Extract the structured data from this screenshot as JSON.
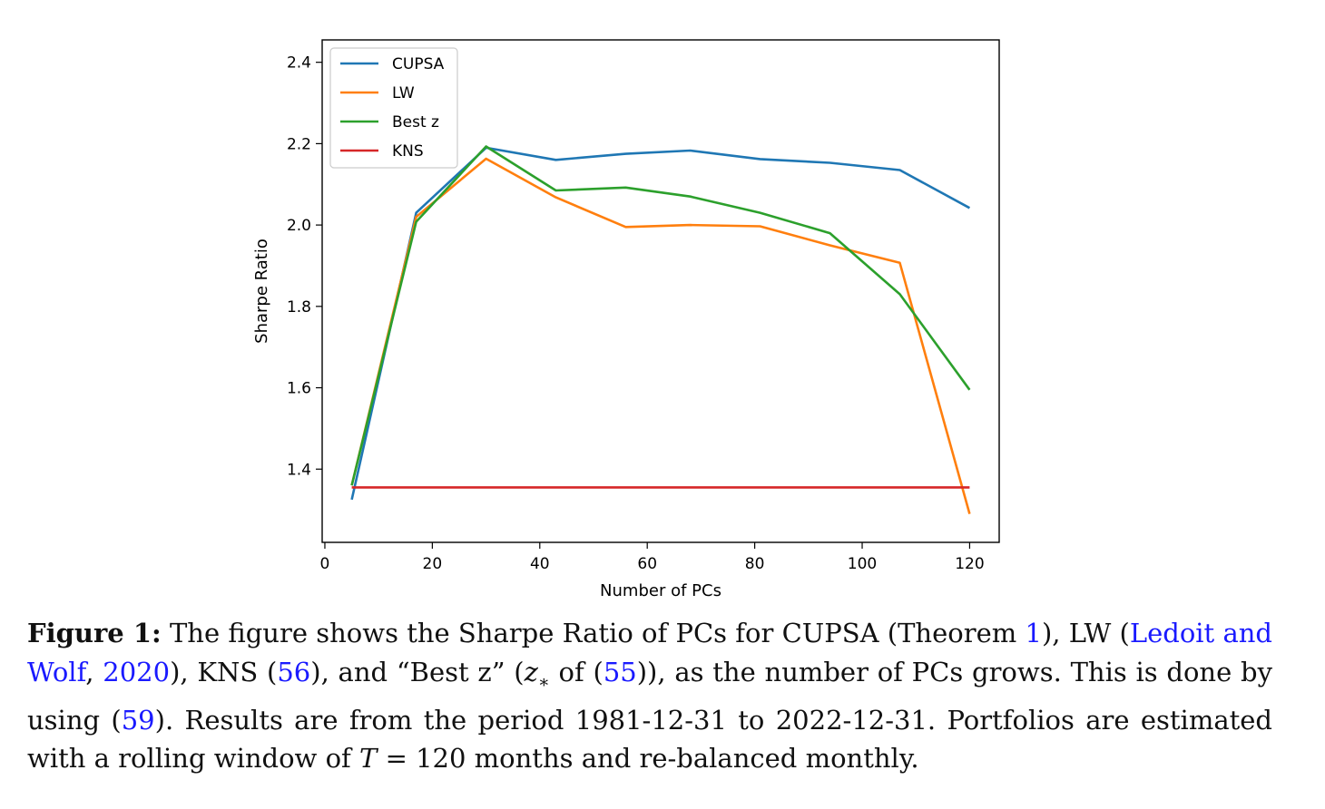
{
  "chart_data": {
    "type": "line",
    "xlabel": "Number of PCs",
    "ylabel": "Sharpe Ratio",
    "xlim": [
      -0.5,
      125.5
    ],
    "ylim": [
      1.22,
      2.455
    ],
    "xticks": [
      0,
      20,
      40,
      60,
      80,
      100,
      120
    ],
    "yticks": [
      1.4,
      1.6,
      1.8,
      2.0,
      2.2,
      2.4
    ],
    "xtick_labels": [
      "0",
      "20",
      "40",
      "60",
      "80",
      "100",
      "120"
    ],
    "ytick_labels": [
      "1.4",
      "1.6",
      "1.8",
      "2.0",
      "2.2",
      "2.4"
    ],
    "grid": false,
    "legend_position": "top-left",
    "series": [
      {
        "name": "CUPSA",
        "color": "#1f77b4",
        "x": [
          5,
          17,
          30,
          43,
          56,
          68,
          81,
          94,
          107,
          120
        ],
        "y": [
          1.325,
          2.03,
          2.19,
          2.16,
          2.175,
          2.183,
          2.162,
          2.153,
          2.135,
          2.042
        ]
      },
      {
        "name": "LW",
        "color": "#ff7f0e",
        "x": [
          5,
          17,
          30,
          43,
          56,
          68,
          81,
          94,
          107,
          120
        ],
        "y": [
          1.36,
          2.02,
          2.163,
          2.068,
          1.995,
          2.0,
          1.997,
          1.95,
          1.907,
          1.29
        ]
      },
      {
        "name": "Best z",
        "color": "#2ca02c",
        "x": [
          5,
          17,
          30,
          43,
          56,
          68,
          81,
          94,
          107,
          120
        ],
        "y": [
          1.36,
          2.008,
          2.193,
          2.085,
          2.092,
          2.07,
          2.03,
          1.98,
          1.83,
          1.595
        ]
      },
      {
        "name": "KNS",
        "color": "#d62728",
        "x": [
          5,
          120
        ],
        "y": [
          1.355,
          1.355
        ]
      }
    ]
  },
  "caption": {
    "label": "Figure 1:",
    "t1": " The figure shows the Sharpe Ratio of PCs for CUPSA (Theorem ",
    "ref_theorem": "1",
    "t2": "), LW (",
    "ref_lw": "Ledoit and Wolf",
    "t3": ", ",
    "ref_year": "2020",
    "t4": "), KNS (",
    "ref_56": "56",
    "t5": "), and “Best z” (",
    "math_z": "z",
    "math_sub": "∗",
    "t6": " of (",
    "ref_55": "55",
    "t7": ")), as the number of PCs grows. This is done by using (",
    "ref_59": "59",
    "t8": "). Results are from the period 1981-12-31 to 2022-12-31. Portfolios are estimated with a rolling window of ",
    "math_T": "T",
    "t9": " = 120 months and re-balanced monthly."
  }
}
